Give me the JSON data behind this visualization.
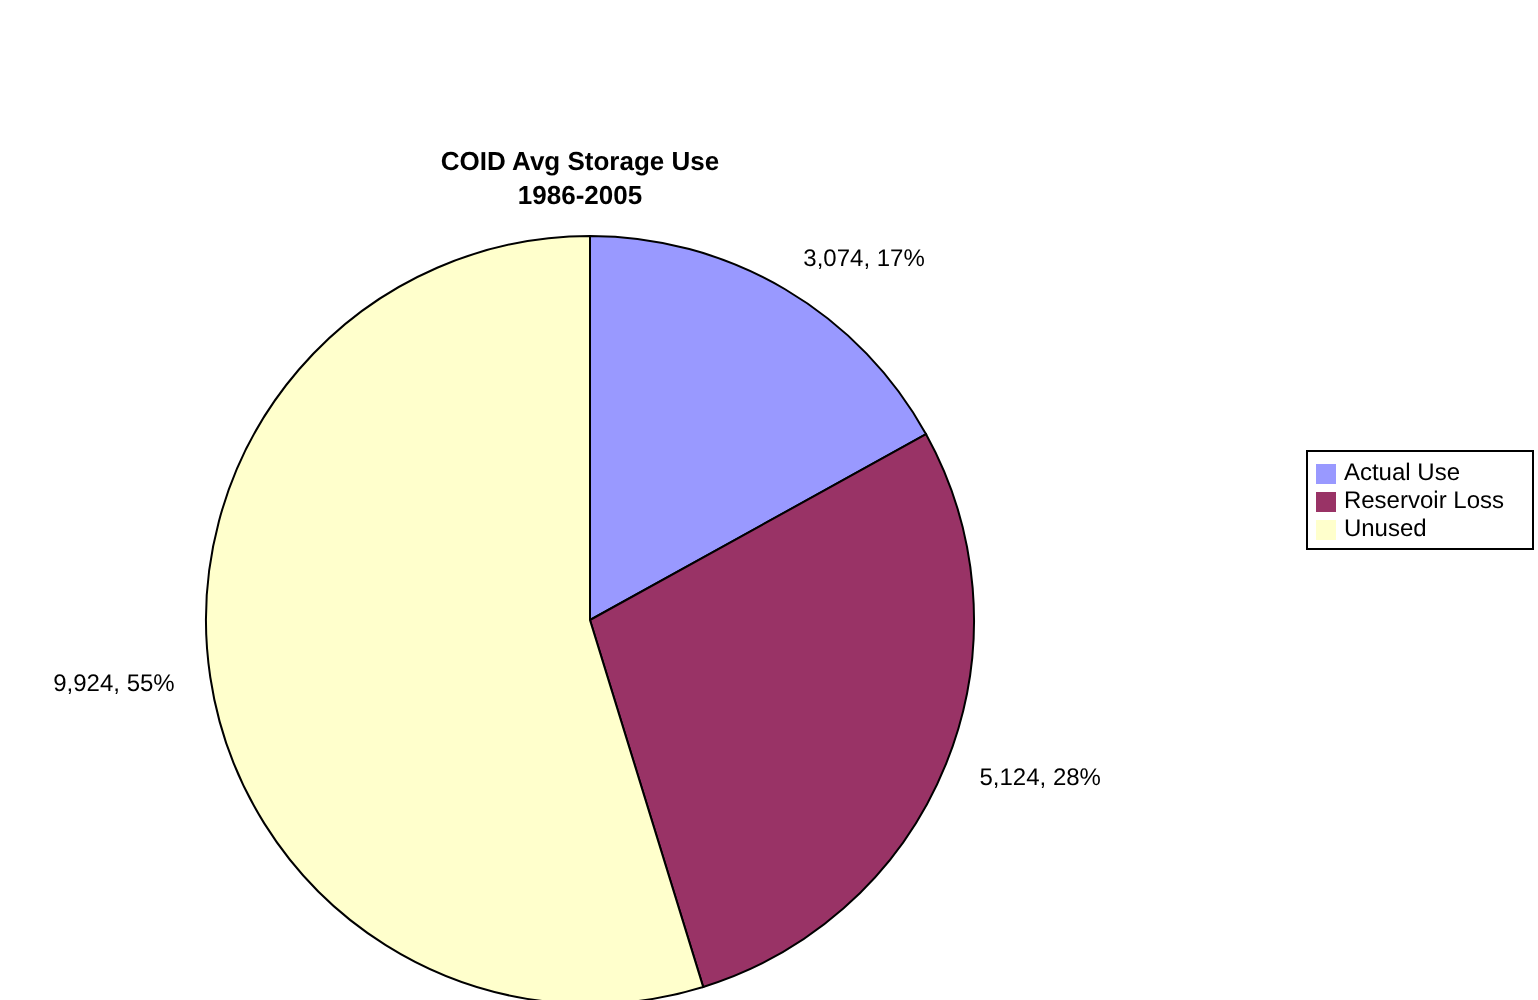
{
  "chart_data": {
    "type": "pie",
    "title": "COID Avg Storage Use",
    "subtitle": "1986-2005",
    "categories": [
      "Actual Use",
      "Reservoir Loss",
      "Unused"
    ],
    "values": [
      3074,
      5124,
      9924
    ],
    "colors": [
      "#9999ff",
      "#993366",
      "#ffffcc"
    ],
    "value_labels": [
      "3,074, 17%",
      "5,124, 28%",
      "9,924, 55%"
    ],
    "legend": "right"
  }
}
